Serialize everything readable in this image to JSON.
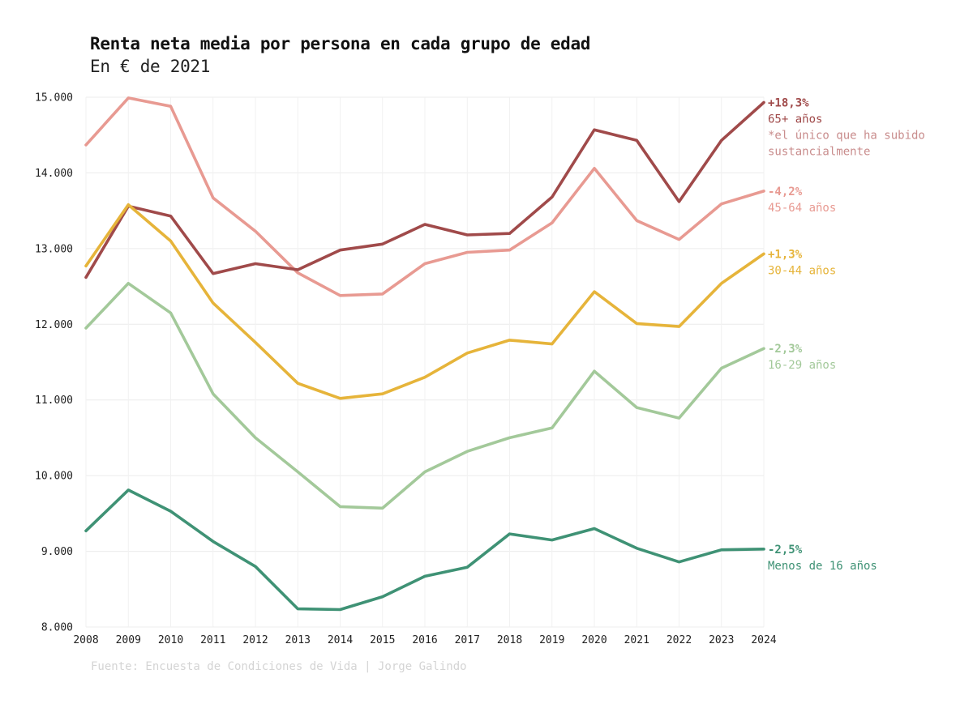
{
  "chart_data": {
    "type": "line",
    "title": "Renta neta media por persona en cada grupo de edad",
    "subtitle": "En € de 2021",
    "source": "Fuente: Encuesta de Condiciones de Vida | Jorge Galindo",
    "ylim": [
      8000,
      15000
    ],
    "yticks": [
      "8.000",
      "9.000",
      "10.000",
      "11.000",
      "12.000",
      "13.000",
      "14.000",
      "15.000"
    ],
    "ytick_values": [
      8000,
      9000,
      10000,
      11000,
      12000,
      13000,
      14000,
      15000
    ],
    "x": [
      "2008",
      "2009",
      "2010",
      "2011",
      "2012",
      "2013",
      "2014",
      "2015",
      "2016",
      "2017",
      "2018",
      "2019",
      "2020",
      "2021",
      "2022",
      "2023",
      "2024"
    ],
    "grid": true,
    "series": [
      {
        "name": "45-64 años",
        "color": "#e89a92",
        "change": "-4,2%",
        "values": [
          14370,
          14990,
          14880,
          13670,
          13230,
          12680,
          12380,
          12400,
          12800,
          12950,
          12980,
          13340,
          14060,
          13370,
          13120,
          13590,
          13760
        ]
      },
      {
        "name": "65+ años",
        "color": "#a04a4a",
        "change": "+18,3%",
        "note_line1": "*el único que ha subido",
        "note_line2": "sustancialmente",
        "values": [
          12620,
          13560,
          13430,
          12670,
          12800,
          12720,
          12980,
          13060,
          13320,
          13180,
          13200,
          13680,
          14570,
          14430,
          13620,
          14430,
          14930
        ]
      },
      {
        "name": "30-44 años",
        "color": "#e6b43a",
        "change": "+1,3%",
        "values": [
          12770,
          13580,
          13100,
          12280,
          11760,
          11220,
          11020,
          11080,
          11300,
          11620,
          11790,
          11740,
          12430,
          12010,
          11970,
          12540,
          12930
        ]
      },
      {
        "name": "16-29 años",
        "color": "#a3c99a",
        "change": "-2,3%",
        "values": [
          11950,
          12540,
          12150,
          11080,
          10500,
          10050,
          9590,
          9570,
          10050,
          10320,
          10500,
          10630,
          11380,
          10900,
          10760,
          11420,
          11680
        ]
      },
      {
        "name": "Menos de 16 años",
        "color": "#3f9275",
        "change": "-2,5%",
        "values": [
          9270,
          9810,
          9530,
          9130,
          8800,
          8240,
          8230,
          8400,
          8670,
          8790,
          9230,
          9150,
          9300,
          9040,
          8860,
          9020,
          9030
        ]
      }
    ]
  }
}
